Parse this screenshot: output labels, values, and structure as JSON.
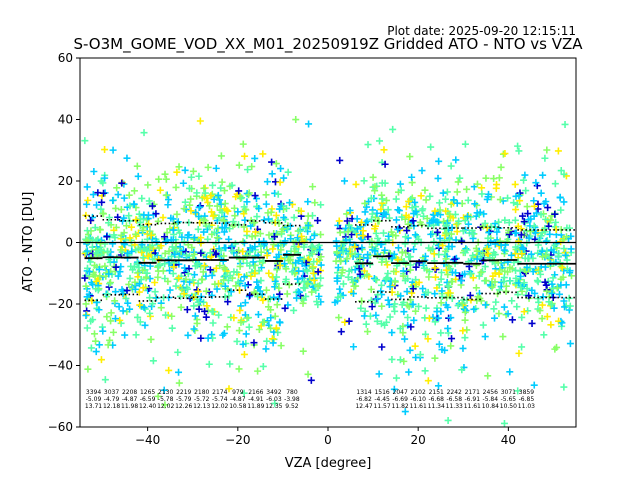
{
  "chart_data": {
    "type": "scatter",
    "title": "S-O3M_GOME_VOD_XX_M01_20250919Z Gridded ATO - NTO vs VZA",
    "plot_date": "Plot date: 2025-09-20 12:15:11",
    "xlabel": "VZA [degree]",
    "ylabel": "ATO - NTO [DU]",
    "xlim": [
      -55,
      55
    ],
    "ylim": [
      -60,
      60
    ],
    "xticks": [
      -40,
      -20,
      0,
      20,
      40
    ],
    "yticks": [
      -60,
      -40,
      -20,
      0,
      20,
      40,
      60
    ],
    "xtick_labels": [
      "−40",
      "−20",
      "0",
      "20",
      "40"
    ],
    "ytick_labels": [
      "−60",
      "−40",
      "−20",
      "0",
      "20",
      "40",
      "60"
    ],
    "series_colors": [
      "#0000cc",
      "#00ccff",
      "#55ffaa",
      "#88ff66",
      "#ffee00"
    ],
    "bins": [
      {
        "x_start": -54,
        "x_end": -50,
        "count": "3394",
        "mean": "-5.09",
        "std": "13.71",
        "mean_val": -5.1,
        "std_val": 13.7
      },
      {
        "x_start": -50,
        "x_end": -46,
        "count": "3037",
        "mean": "-4.79",
        "std": "12.18",
        "mean_val": -4.8,
        "std_val": 12.2
      },
      {
        "x_start": -46,
        "x_end": -42,
        "count": "2208",
        "mean": "-4.87",
        "std": "11.98",
        "mean_val": -4.9,
        "std_val": 12.0
      },
      {
        "x_start": -42,
        "x_end": -38,
        "count": "1265",
        "mean": "-6.59",
        "std": "12.40",
        "mean_val": -6.6,
        "std_val": 12.4
      },
      {
        "x_start": -38,
        "x_end": -34,
        "count": "2130",
        "mean": "-5.78",
        "std": "12.02",
        "mean_val": -5.8,
        "std_val": 12.0
      },
      {
        "x_start": -34,
        "x_end": -30,
        "count": "2219",
        "mean": "-5.79",
        "std": "12.26",
        "mean_val": -5.8,
        "std_val": 12.3
      },
      {
        "x_start": -30,
        "x_end": -26,
        "count": "2180",
        "mean": "-5.72",
        "std": "12.13",
        "mean_val": -5.7,
        "std_val": 12.1
      },
      {
        "x_start": -26,
        "x_end": -22,
        "count": "2174",
        "mean": "-5.74",
        "std": "12.02",
        "mean_val": -5.7,
        "std_val": 12.0
      },
      {
        "x_start": -22,
        "x_end": -18,
        "count": "979",
        "mean": "-4.87",
        "std": "10.58",
        "mean_val": -4.9,
        "std_val": 10.6
      },
      {
        "x_start": -18,
        "x_end": -14,
        "count": "2166",
        "mean": "-4.91",
        "std": "11.89",
        "mean_val": -4.9,
        "std_val": 11.9
      },
      {
        "x_start": -14,
        "x_end": -10,
        "count": "3492",
        "mean": "-6.03",
        "std": "12.35",
        "mean_val": -6.0,
        "std_val": 12.4
      },
      {
        "x_start": -10,
        "x_end": -6,
        "count": "780",
        "mean": "-3.98",
        "std": "9.52",
        "mean_val": -4.0,
        "std_val": 9.5
      },
      {
        "x_start": 6,
        "x_end": 10,
        "count": "1314",
        "mean": "-6.82",
        "std": "12.47",
        "mean_val": -6.8,
        "std_val": 12.5
      },
      {
        "x_start": 10,
        "x_end": 14,
        "count": "1516",
        "mean": "-4.45",
        "std": "11.57",
        "mean_val": -4.5,
        "std_val": 11.6
      },
      {
        "x_start": 14,
        "x_end": 18,
        "count": "2047",
        "mean": "-6.69",
        "std": "11.82",
        "mean_val": -6.7,
        "std_val": 11.8
      },
      {
        "x_start": 18,
        "x_end": 22,
        "count": "2102",
        "mean": "-6.10",
        "std": "11.61",
        "mean_val": -6.1,
        "std_val": 11.6
      },
      {
        "x_start": 22,
        "x_end": 26,
        "count": "2151",
        "mean": "-6.68",
        "std": "11.34",
        "mean_val": -6.7,
        "std_val": 11.3
      },
      {
        "x_start": 26,
        "x_end": 30,
        "count": "2242",
        "mean": "-6.58",
        "std": "11.33",
        "mean_val": -6.6,
        "std_val": 11.3
      },
      {
        "x_start": 30,
        "x_end": 34,
        "count": "2171",
        "mean": "-6.91",
        "std": "11.61",
        "mean_val": -6.9,
        "std_val": 11.6
      },
      {
        "x_start": 34,
        "x_end": 38,
        "count": "2456",
        "mean": "-5.84",
        "std": "10.84",
        "mean_val": -5.8,
        "std_val": 10.8
      },
      {
        "x_start": 38,
        "x_end": 42,
        "count": "3071",
        "mean": "-5.65",
        "std": "10.50",
        "mean_val": -5.7,
        "std_val": 10.5
      },
      {
        "x_start": 42,
        "x_end": 55,
        "count": "3859",
        "mean": "-6.85",
        "std": "11.03",
        "mean_val": -6.9,
        "std_val": 11.0
      }
    ]
  }
}
